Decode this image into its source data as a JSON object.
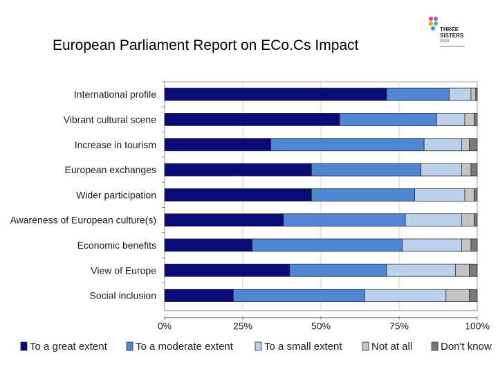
{
  "page": {
    "title": "European Parliament Report on ECo.Cs Impact",
    "logo": {
      "line1": "THREE",
      "line2": "SISTERS",
      "year": "2020"
    }
  },
  "chart_data": {
    "type": "bar",
    "orientation": "horizontal",
    "stacked": true,
    "percent": true,
    "categories": [
      "International profile",
      "Vibrant cultural scene",
      "Increase in tourism",
      "European exchanges",
      "Wider participation",
      "Awareness of European culture(s)",
      "Economic benefits",
      "View of Europe",
      "Social inclusion"
    ],
    "series": [
      {
        "name": "To a great extent",
        "color": "#0a0a78",
        "values": [
          71,
          56,
          34,
          47,
          47,
          38,
          28,
          40,
          22
        ]
      },
      {
        "name": "To a moderate extent",
        "color": "#4f86d4",
        "values": [
          20,
          31,
          49,
          35,
          33,
          39,
          48,
          31,
          42
        ]
      },
      {
        "name": "To a small extent",
        "color": "#bcd0eb",
        "values": [
          7,
          9,
          12,
          13,
          16,
          18,
          19,
          22,
          26
        ]
      },
      {
        "name": "Not at all",
        "color": "#c4c4c4",
        "values": [
          1.5,
          3,
          2.5,
          3,
          3,
          4,
          3,
          4.5,
          7.5
        ]
      },
      {
        "name": "Don't know",
        "color": "#7a7a7a",
        "values": [
          0.5,
          1,
          2.5,
          2,
          1,
          1,
          2,
          2.5,
          2.5
        ]
      }
    ],
    "xticks": [
      "0%",
      "25%",
      "50%",
      "75%",
      "100%"
    ],
    "xlim": [
      0,
      100
    ],
    "legend_position": "bottom",
    "grid": true
  }
}
